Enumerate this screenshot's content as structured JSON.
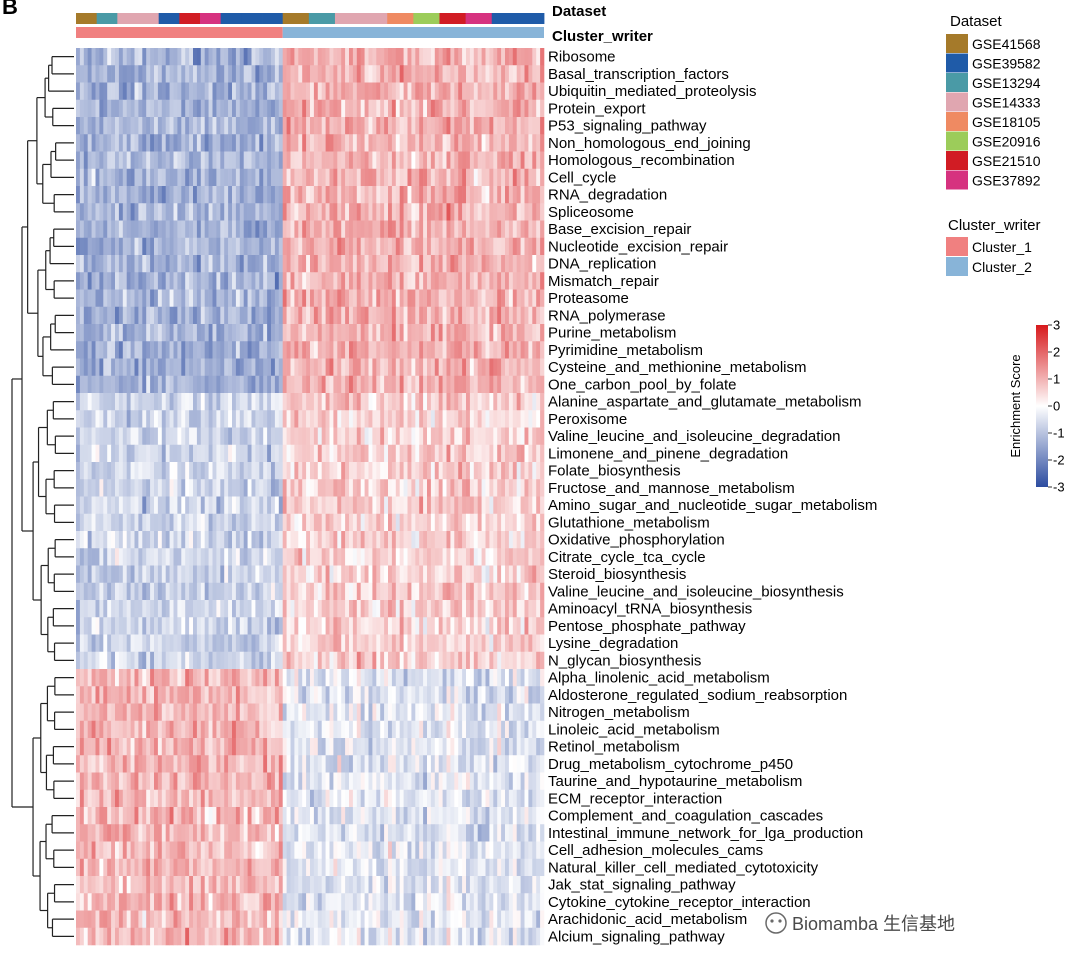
{
  "chart_data": {
    "type": "heatmap",
    "panel_letter": "B",
    "rows": [
      "Ribosome",
      "Basal_transcription_factors",
      "Ubiquitin_mediated_proteolysis",
      "Protein_export",
      "P53_signaling_pathway",
      "Non_homologous_end_joining",
      "Homologous_recombination",
      "Cell_cycle",
      "RNA_degradation",
      "Spliceosome",
      "Base_excision_repair",
      "Nucleotide_excision_repair",
      "DNA_replication",
      "Mismatch_repair",
      "Proteasome",
      "RNA_polymerase",
      "Purine_metabolism",
      "Pyrimidine_metabolism",
      "Cysteine_and_methionine_metabolism",
      "One_carbon_pool_by_folate",
      "Alanine_aspartate_and_glutamate_metabolism",
      "Peroxisome",
      "Valine_leucine_and_isoleucine_degradation",
      "Limonene_and_pinene_degradation",
      "Folate_biosynthesis",
      "Fructose_and_mannose_metabolism",
      "Amino_sugar_and_nucleotide_sugar_metabolism",
      "Glutathione_metabolism",
      "Oxidative_phosphorylation",
      "Citrate_cycle_tca_cycle",
      "Steroid_biosynthesis",
      "Valine_leucine_and_isoleucine_biosynthesis",
      "Aminoacyl_tRNA_biosynthesis",
      "Pentose_phosphate_pathway",
      "Lysine_degradation",
      "N_glycan_biosynthesis",
      "Alpha_linolenic_acid_metabolism",
      "Aldosterone_regulated_sodium_reabsorption",
      "Nitrogen_metabolism",
      "Linoleic_acid_metabolism",
      "Retinol_metabolism",
      "Drug_metabolism_cytochrome_p450",
      "Taurine_and_hypotaurine_metabolism",
      "ECM_receptor_interaction",
      "Complement_and_coagulation_cascades",
      "Intestinal_immune_network_for_lga_production",
      "Cell_adhesion_molecules_cams",
      "Natural_killer_cell_mediated_cytotoxicity",
      "Jak_stat_signaling_pathway",
      "Cytokine_cytokine_receptor_interaction",
      "Arachidonic_acid_metabolism",
      "Alcium_signaling_pathway"
    ],
    "row_groups": [
      {
        "rows": [
          0,
          19
        ],
        "cluster_1_mean": -1.3,
        "cluster_2_mean": 1.0
      },
      {
        "rows": [
          20,
          35
        ],
        "cluster_1_mean": -0.7,
        "cluster_2_mean": 0.6
      },
      {
        "rows": [
          36,
          51
        ],
        "cluster_1_mean": 0.9,
        "cluster_2_mean": -0.4
      }
    ],
    "column_tracks": {
      "dataset_label": "Dataset",
      "cluster_label": "Cluster_writer"
    },
    "cluster_1_column_fraction": 0.44,
    "colorscale": {
      "title": "Enrichment Score",
      "min": -3,
      "max": 3,
      "ticks": [
        "3",
        "2",
        "1",
        "0",
        "-1",
        "-2",
        "-3"
      ],
      "high_color": "#d7191c",
      "mid_color": "#ffffff",
      "low_color": "#2c4ca0"
    },
    "legend_dataset": {
      "title": "Dataset",
      "items": [
        {
          "label": "GSE41568",
          "color": "#a57a2a"
        },
        {
          "label": "GSE39582",
          "color": "#1f5ba8"
        },
        {
          "label": "GSE13294",
          "color": "#4a9aa6"
        },
        {
          "label": "GSE14333",
          "color": "#e0a6b0"
        },
        {
          "label": "GSE18105",
          "color": "#ef8a62"
        },
        {
          "label": "GSE20916",
          "color": "#9ccc5a"
        },
        {
          "label": "GSE21510",
          "color": "#d11c24"
        },
        {
          "label": "GSE37892",
          "color": "#d6327f"
        }
      ]
    },
    "legend_cluster": {
      "title": "Cluster_writer",
      "items": [
        {
          "label": "Cluster_1",
          "color": "#f08080"
        },
        {
          "label": "Cluster_2",
          "color": "#88b4d8"
        }
      ]
    },
    "watermark": "Biomamba 生信基地"
  }
}
